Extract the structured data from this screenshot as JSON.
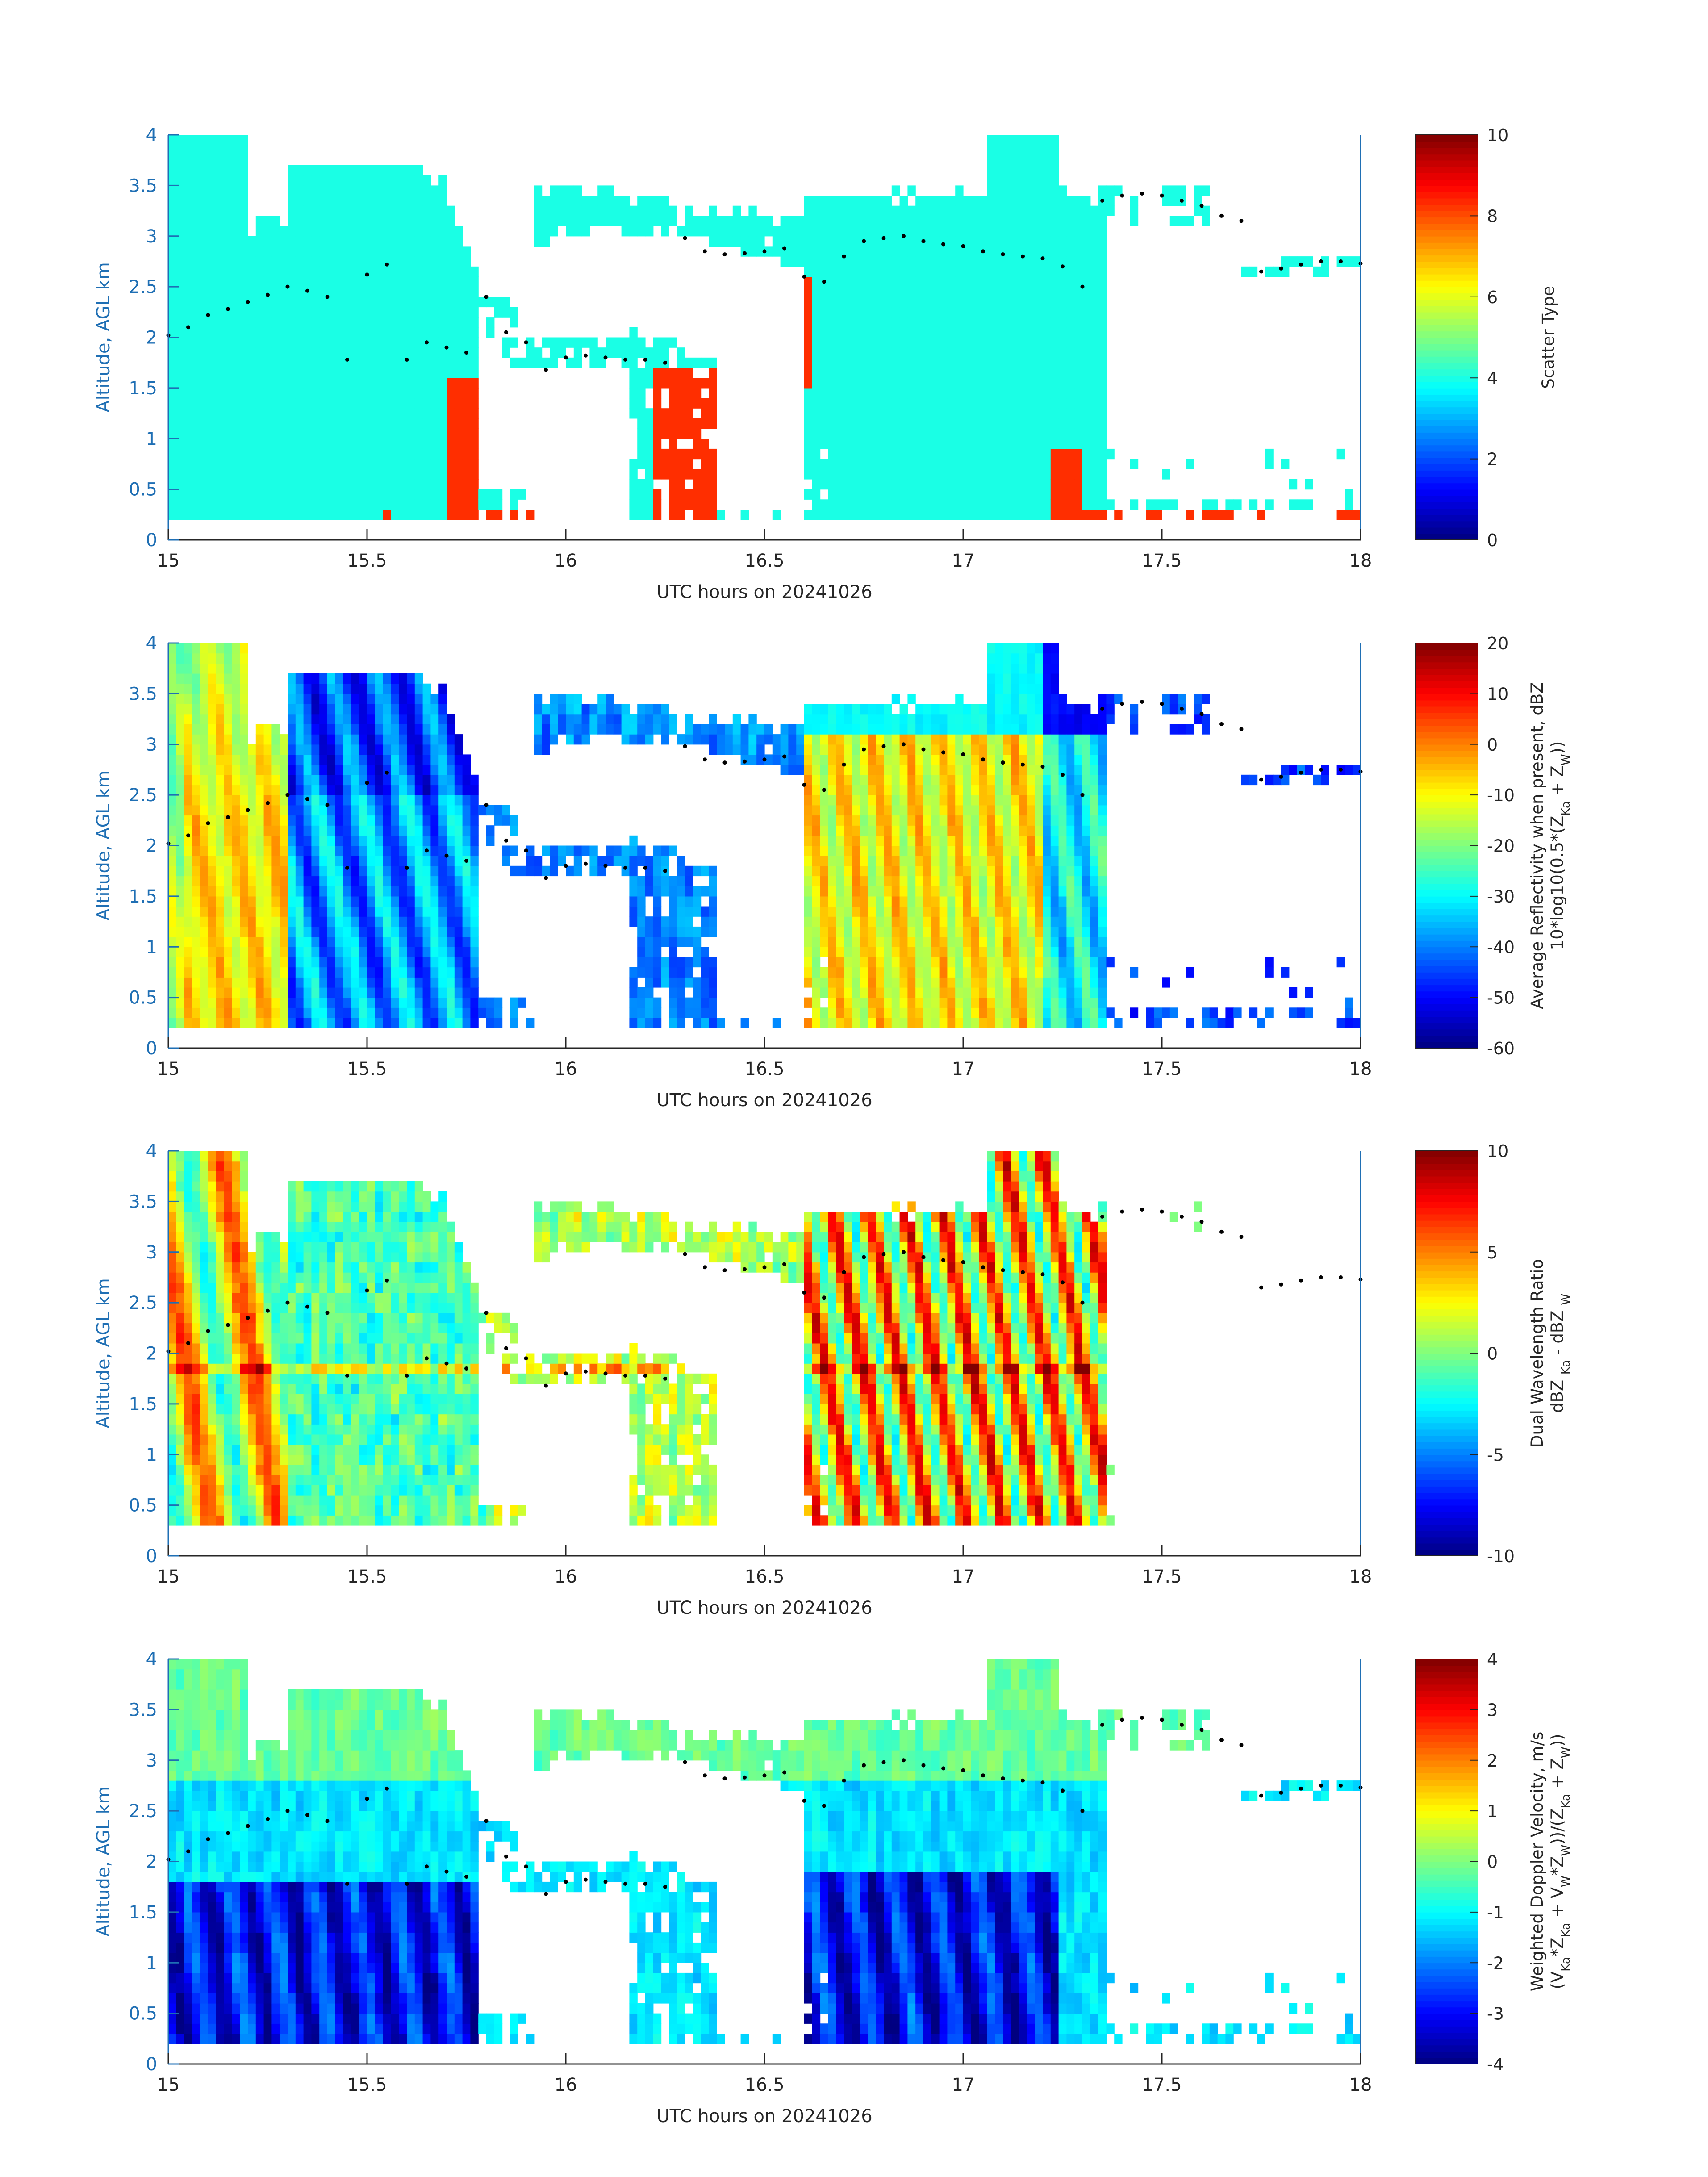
{
  "chart_data": [
    {
      "type": "heatmap",
      "variable": "scatter_type",
      "xlabel": "UTC hours on 20241026",
      "ylabel": "Altitude, AGL km",
      "xlim": [
        15,
        18
      ],
      "ylim": [
        0,
        4
      ],
      "xticks": [
        "15",
        "15.5",
        "16",
        "16.5",
        "17",
        "17.5",
        "18"
      ],
      "yticks": [
        "0",
        "0.5",
        "1",
        "1.5",
        "2",
        "2.5",
        "3",
        "3.5",
        "4"
      ],
      "colorbar": {
        "label_parts": [
          {
            "t": "Scatter Type"
          }
        ],
        "label_line2_parts": [],
        "clim": [
          0,
          10
        ],
        "ticks": [
          "0",
          "2",
          "4",
          "6",
          "8",
          "10"
        ],
        "colormap": "jet"
      },
      "notes": "Categorical scatter type: cloud (~4, cyan) through 3.7 km; precipitation (~8.3, red-orange) near surface"
    },
    {
      "type": "heatmap",
      "variable": "reflectivity",
      "xlabel": "UTC hours on 20241026",
      "ylabel": "Altitude, AGL km",
      "xlim": [
        15,
        18
      ],
      "ylim": [
        0,
        4
      ],
      "xticks": [
        "15",
        "15.5",
        "16",
        "16.5",
        "17",
        "17.5",
        "18"
      ],
      "yticks": [
        "0",
        "0.5",
        "1",
        "1.5",
        "2",
        "2.5",
        "3",
        "3.5",
        "4"
      ],
      "colorbar": {
        "label_parts": [
          {
            "t": "Average Reflectivity when present, dBZ"
          }
        ],
        "label_line2_parts": [
          {
            "t": "10*log10(0.5*(Z"
          },
          {
            "t": "Ka",
            "sub": true
          },
          {
            "t": " + Z"
          },
          {
            "t": "W",
            "sub": true
          },
          {
            "t": "))"
          }
        ],
        "clim": [
          -60,
          20
        ],
        "ticks": [
          "-60",
          "-50",
          "-40",
          "-30",
          "-20",
          "-10",
          "0",
          "10",
          "20"
        ],
        "colormap": "jet"
      }
    },
    {
      "type": "heatmap",
      "variable": "dual_wavelength_ratio",
      "xlabel": "UTC hours on 20241026",
      "ylabel": "Altitude, AGL km",
      "xlim": [
        15,
        18
      ],
      "ylim": [
        0,
        4
      ],
      "xticks": [
        "15",
        "15.5",
        "16",
        "16.5",
        "17",
        "17.5",
        "18"
      ],
      "yticks": [
        "0",
        "0.5",
        "1",
        "1.5",
        "2",
        "2.5",
        "3",
        "3.5",
        "4"
      ],
      "colorbar": {
        "label_parts": [
          {
            "t": "Dual Wavelength Ratio"
          }
        ],
        "label_line2_parts": [
          {
            "t": "dBZ "
          },
          {
            "t": "Ka",
            "sub": true
          },
          {
            "t": " - dBZ "
          },
          {
            "t": "W",
            "sub": true
          }
        ],
        "clim": [
          -10,
          10
        ],
        "ticks": [
          "-10",
          "-5",
          "0",
          "5",
          "10"
        ],
        "colormap": "jet"
      }
    },
    {
      "type": "heatmap",
      "variable": "doppler_velocity",
      "xlabel": "UTC hours on 20241026",
      "ylabel": "Altitude, AGL km",
      "xlim": [
        15,
        18
      ],
      "ylim": [
        0,
        4
      ],
      "xticks": [
        "15",
        "15.5",
        "16",
        "16.5",
        "17",
        "17.5",
        "18"
      ],
      "yticks": [
        "0",
        "0.5",
        "1",
        "1.5",
        "2",
        "2.5",
        "3",
        "3.5",
        "4"
      ],
      "colorbar": {
        "label_parts": [
          {
            "t": "Weighted Doppler Velocity, m/s"
          }
        ],
        "label_line2_parts": [
          {
            "t": "(V"
          },
          {
            "t": "Ka",
            "sub": true
          },
          {
            "t": "*Z"
          },
          {
            "t": "Ka",
            "sub": true
          },
          {
            "t": " + V"
          },
          {
            "t": "W",
            "sub": true
          },
          {
            "t": "*Z"
          },
          {
            "t": "W",
            "sub": true
          },
          {
            "t": "))/(Z"
          },
          {
            "t": "Ka",
            "sub": true
          },
          {
            "t": " + Z"
          },
          {
            "t": "W",
            "sub": true
          },
          {
            "t": "))"
          }
        ],
        "clim": [
          -4,
          4
        ],
        "ticks": [
          "-4",
          "-3",
          "-2",
          "-1",
          "0",
          "1",
          "2",
          "3",
          "4"
        ],
        "colormap": "jet"
      }
    }
  ],
  "cloud_top_markers": {
    "x": [
      15.0,
      15.05,
      15.1,
      15.15,
      15.2,
      15.25,
      15.3,
      15.35,
      15.4,
      15.45,
      15.5,
      15.55,
      15.6,
      15.65,
      15.7,
      15.75,
      15.8,
      15.85,
      15.9,
      15.95,
      16.0,
      16.05,
      16.1,
      16.15,
      16.2,
      16.25,
      16.3,
      16.35,
      16.4,
      16.45,
      16.5,
      16.55,
      16.6,
      16.65,
      16.7,
      16.75,
      16.8,
      16.85,
      16.9,
      16.95,
      17.0,
      17.05,
      17.1,
      17.15,
      17.2,
      17.25,
      17.3,
      17.35,
      17.4,
      17.45,
      17.5,
      17.55,
      17.6,
      17.65,
      17.7,
      17.75,
      17.8,
      17.85,
      17.9,
      17.95,
      18.0
    ],
    "y": [
      2.02,
      2.1,
      2.22,
      2.28,
      2.35,
      2.42,
      2.5,
      2.46,
      2.4,
      1.78,
      2.62,
      2.72,
      1.78,
      1.95,
      1.9,
      1.85,
      2.4,
      2.05,
      1.95,
      1.68,
      1.8,
      1.82,
      1.8,
      1.78,
      1.78,
      1.75,
      2.98,
      2.85,
      2.82,
      2.83,
      2.85,
      2.88,
      2.6,
      2.55,
      2.8,
      2.95,
      2.98,
      3.0,
      2.95,
      2.92,
      2.9,
      2.85,
      2.82,
      2.8,
      2.78,
      2.7,
      2.5,
      3.35,
      3.4,
      3.42,
      3.4,
      3.35,
      3.3,
      3.2,
      3.15,
      2.65,
      2.68,
      2.72,
      2.75,
      2.75,
      2.73
    ]
  }
}
